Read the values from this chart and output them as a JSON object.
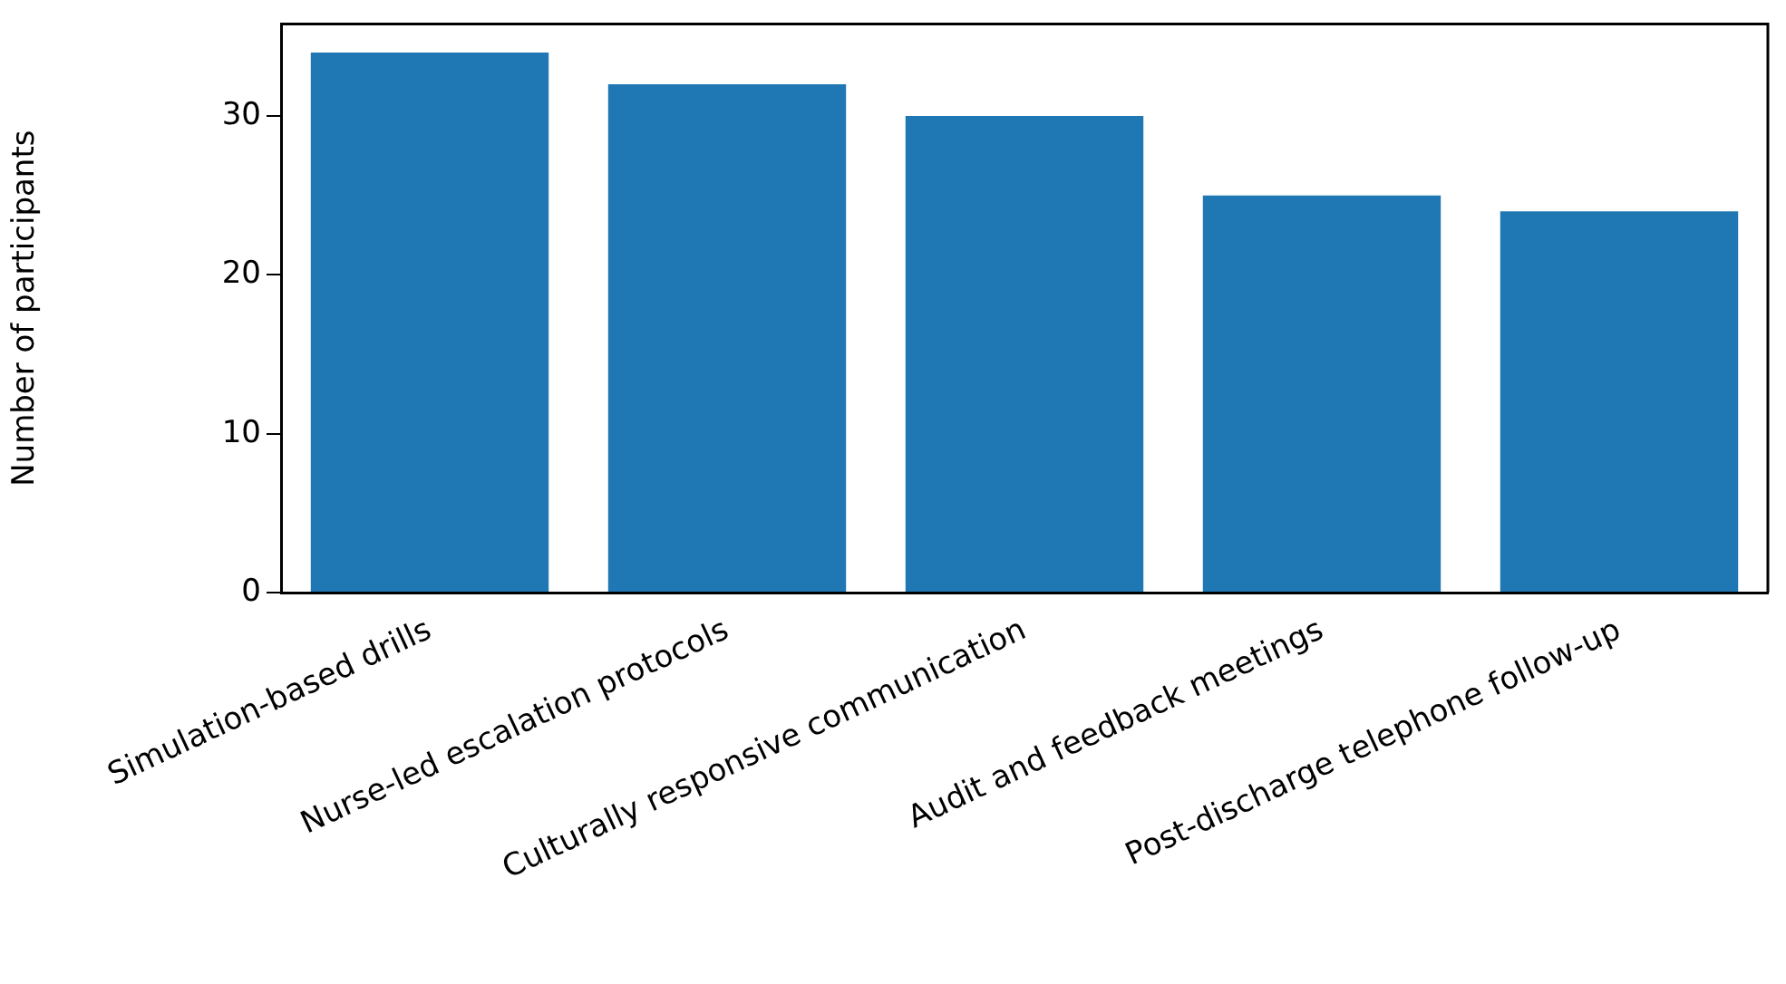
{
  "chart_data": {
    "type": "bar",
    "ylabel": "Number of participants",
    "categories": [
      "Simulation-based drills",
      "Nurse-led escalation protocols",
      "Culturally responsive communication",
      "Audit and feedback meetings",
      "Post-discharge telephone follow-up"
    ],
    "values": [
      34,
      32,
      30,
      25,
      24
    ],
    "color": "#1f77b4",
    "ylim": [
      0,
      35.8
    ],
    "yticks": [
      0,
      10,
      20,
      30
    ],
    "grid": false,
    "legend": false
  }
}
